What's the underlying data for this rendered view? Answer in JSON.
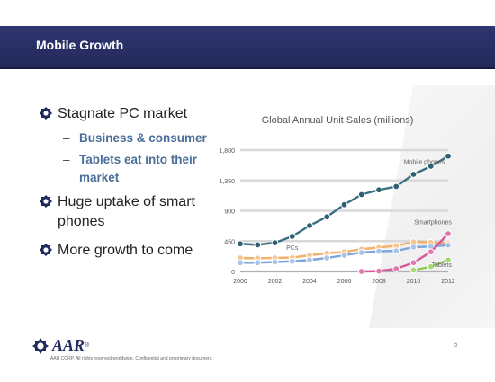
{
  "slide": {
    "title": "Mobile Growth",
    "bullets": [
      {
        "text": "Stagnate PC market",
        "sub": [
          "Business & consumer",
          "Tablets eat into their market"
        ]
      },
      {
        "text": "Huge uptake of smart phones",
        "sub": []
      },
      {
        "text": "More growth to come",
        "sub": []
      }
    ],
    "footer": {
      "logo_text": "AAR",
      "logo_mark": "®",
      "legal": "AAR CORP. All rights reserved worldwide. Confidential and proprietary document.",
      "page": "6"
    }
  },
  "chart_data": {
    "type": "line",
    "title": "Global Annual Unit Sales (millions)",
    "x": [
      2000,
      2001,
      2002,
      2003,
      2004,
      2005,
      2006,
      2007,
      2008,
      2009,
      2010,
      2011,
      2012
    ],
    "xticks": [
      "2000",
      "2002",
      "2004",
      "2006",
      "2008",
      "2010",
      "2012"
    ],
    "yticks": [
      "0",
      "450",
      "900",
      "1,350",
      "1,800"
    ],
    "ylim": [
      0,
      1800
    ],
    "grid": true,
    "series": [
      {
        "name": "Mobile phones",
        "color": "#3a6f82",
        "marker_fill": "#2e5f72",
        "values": [
          410,
          395,
          425,
          520,
          680,
          810,
          990,
          1140,
          1210,
          1260,
          1440,
          1560,
          1710
        ]
      },
      {
        "name": "",
        "color": "#f2b06a",
        "marker_fill": "#f6c48c",
        "values": [
          200,
          195,
          200,
          205,
          240,
          270,
          290,
          330,
          355,
          380,
          440,
          430,
          420
        ]
      },
      {
        "name": "PCs",
        "color": "#7fa6d6",
        "marker_fill": "#a9c4e8",
        "values": [
          130,
          130,
          140,
          150,
          170,
          200,
          240,
          280,
          300,
          305,
          360,
          370,
          390
        ]
      },
      {
        "name": "Smartphones",
        "color": "#d55a9a",
        "marker_fill": "#e07aae",
        "values": [
          null,
          null,
          null,
          null,
          null,
          null,
          null,
          0,
          5,
          40,
          130,
          290,
          560
        ]
      },
      {
        "name": "Tablets",
        "color": "#8ec85a",
        "marker_fill": "#a6d877",
        "values": [
          null,
          null,
          null,
          null,
          null,
          null,
          null,
          null,
          null,
          null,
          20,
          70,
          170
        ]
      }
    ]
  }
}
